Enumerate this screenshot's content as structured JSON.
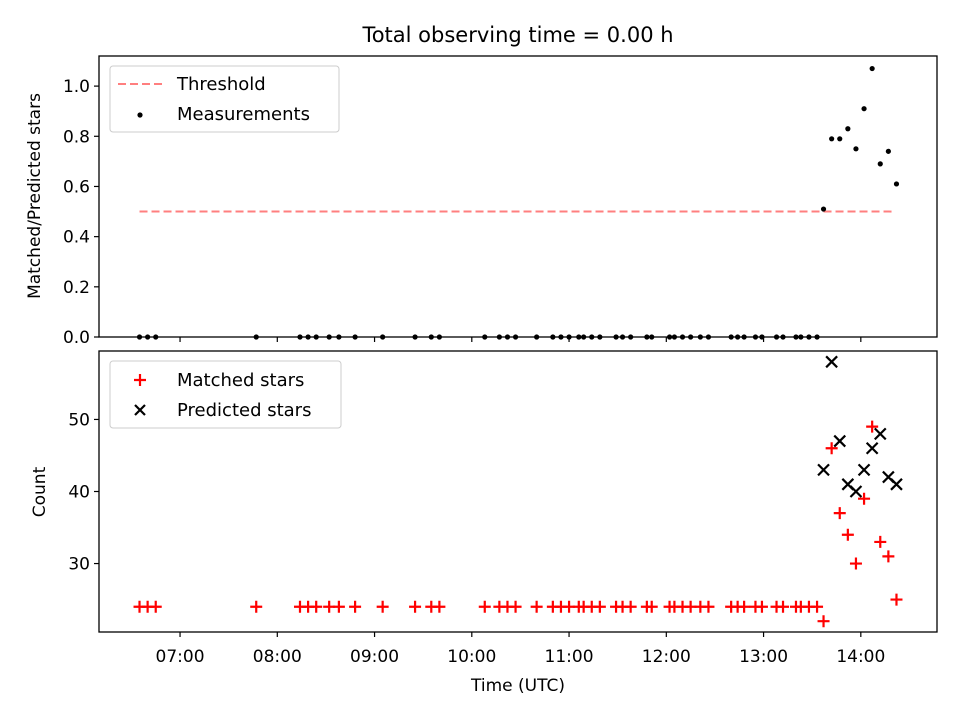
{
  "chart_data": [
    {
      "type": "scatter",
      "title": "Total observing time = 0.00 h",
      "xlabel": "",
      "ylabel": "Matched/Predicted stars",
      "ylim": [
        0,
        1.12
      ],
      "yticks": [
        "0.0",
        "0.2",
        "0.4",
        "0.6",
        "0.8",
        "1.0"
      ],
      "legend_position": "top-left",
      "threshold": {
        "name": "Threshold",
        "value": 0.5,
        "x_start": "06:35",
        "x_end": "14:20",
        "color": "#ff7f7f"
      },
      "series": [
        {
          "name": "Measurements",
          "color": "#000000",
          "marker": "dot",
          "points": [
            {
              "x": "06:35",
              "y": 0.0
            },
            {
              "x": "06:40",
              "y": 0.0
            },
            {
              "x": "06:45",
              "y": 0.0
            },
            {
              "x": "07:47",
              "y": 0.0
            },
            {
              "x": "08:14",
              "y": 0.0
            },
            {
              "x": "08:19",
              "y": 0.0
            },
            {
              "x": "08:24",
              "y": 0.0
            },
            {
              "x": "08:32",
              "y": 0.0
            },
            {
              "x": "08:38",
              "y": 0.0
            },
            {
              "x": "08:48",
              "y": 0.0
            },
            {
              "x": "09:05",
              "y": 0.0
            },
            {
              "x": "09:25",
              "y": 0.0
            },
            {
              "x": "09:35",
              "y": 0.0
            },
            {
              "x": "09:40",
              "y": 0.0
            },
            {
              "x": "10:08",
              "y": 0.0
            },
            {
              "x": "10:17",
              "y": 0.0
            },
            {
              "x": "10:22",
              "y": 0.0
            },
            {
              "x": "10:27",
              "y": 0.0
            },
            {
              "x": "10:40",
              "y": 0.0
            },
            {
              "x": "10:50",
              "y": 0.0
            },
            {
              "x": "10:55",
              "y": 0.0
            },
            {
              "x": "11:00",
              "y": 0.0
            },
            {
              "x": "11:06",
              "y": 0.0
            },
            {
              "x": "11:09",
              "y": 0.0
            },
            {
              "x": "11:14",
              "y": 0.0
            },
            {
              "x": "11:19",
              "y": 0.0
            },
            {
              "x": "11:29",
              "y": 0.0
            },
            {
              "x": "11:33",
              "y": 0.0
            },
            {
              "x": "11:38",
              "y": 0.0
            },
            {
              "x": "11:48",
              "y": 0.0
            },
            {
              "x": "11:51",
              "y": 0.0
            },
            {
              "x": "12:02",
              "y": 0.0
            },
            {
              "x": "12:05",
              "y": 0.0
            },
            {
              "x": "12:10",
              "y": 0.0
            },
            {
              "x": "12:15",
              "y": 0.0
            },
            {
              "x": "12:21",
              "y": 0.0
            },
            {
              "x": "12:26",
              "y": 0.0
            },
            {
              "x": "12:40",
              "y": 0.0
            },
            {
              "x": "12:44",
              "y": 0.0
            },
            {
              "x": "12:48",
              "y": 0.0
            },
            {
              "x": "12:55",
              "y": 0.0
            },
            {
              "x": "12:59",
              "y": 0.0
            },
            {
              "x": "13:08",
              "y": 0.0
            },
            {
              "x": "13:12",
              "y": 0.0
            },
            {
              "x": "13:20",
              "y": 0.0
            },
            {
              "x": "13:23",
              "y": 0.0
            },
            {
              "x": "13:28",
              "y": 0.0
            },
            {
              "x": "13:33",
              "y": 0.0
            },
            {
              "x": "13:37",
              "y": 0.51
            },
            {
              "x": "13:42",
              "y": 0.79
            },
            {
              "x": "13:47",
              "y": 0.79
            },
            {
              "x": "13:52",
              "y": 0.83
            },
            {
              "x": "13:57",
              "y": 0.75
            },
            {
              "x": "14:02",
              "y": 0.91
            },
            {
              "x": "14:07",
              "y": 1.07
            },
            {
              "x": "14:12",
              "y": 0.69
            },
            {
              "x": "14:17",
              "y": 0.74
            },
            {
              "x": "14:22",
              "y": 0.61
            }
          ]
        }
      ]
    },
    {
      "type": "scatter",
      "title": "",
      "xlabel": "Time (UTC)",
      "ylabel": "Count",
      "ylim": [
        20.5,
        59.5
      ],
      "yticks": [
        "30",
        "40",
        "50"
      ],
      "xticks": [
        "07:00",
        "08:00",
        "09:00",
        "10:00",
        "11:00",
        "12:00",
        "13:00",
        "14:00"
      ],
      "xlim": [
        "06:10",
        "14:47"
      ],
      "legend_position": "top-left",
      "series": [
        {
          "name": "Matched stars",
          "color": "#ff0000",
          "marker": "plus",
          "points": [
            {
              "x": "06:35",
              "y": 24
            },
            {
              "x": "06:40",
              "y": 24
            },
            {
              "x": "06:45",
              "y": 24
            },
            {
              "x": "07:47",
              "y": 24
            },
            {
              "x": "08:14",
              "y": 24
            },
            {
              "x": "08:19",
              "y": 24
            },
            {
              "x": "08:24",
              "y": 24
            },
            {
              "x": "08:32",
              "y": 24
            },
            {
              "x": "08:38",
              "y": 24
            },
            {
              "x": "08:48",
              "y": 24
            },
            {
              "x": "09:05",
              "y": 24
            },
            {
              "x": "09:25",
              "y": 24
            },
            {
              "x": "09:35",
              "y": 24
            },
            {
              "x": "09:40",
              "y": 24
            },
            {
              "x": "10:08",
              "y": 24
            },
            {
              "x": "10:17",
              "y": 24
            },
            {
              "x": "10:22",
              "y": 24
            },
            {
              "x": "10:27",
              "y": 24
            },
            {
              "x": "10:40",
              "y": 24
            },
            {
              "x": "10:50",
              "y": 24
            },
            {
              "x": "10:55",
              "y": 24
            },
            {
              "x": "11:00",
              "y": 24
            },
            {
              "x": "11:06",
              "y": 24
            },
            {
              "x": "11:09",
              "y": 24
            },
            {
              "x": "11:14",
              "y": 24
            },
            {
              "x": "11:19",
              "y": 24
            },
            {
              "x": "11:29",
              "y": 24
            },
            {
              "x": "11:33",
              "y": 24
            },
            {
              "x": "11:38",
              "y": 24
            },
            {
              "x": "11:48",
              "y": 24
            },
            {
              "x": "11:51",
              "y": 24
            },
            {
              "x": "12:02",
              "y": 24
            },
            {
              "x": "12:05",
              "y": 24
            },
            {
              "x": "12:10",
              "y": 24
            },
            {
              "x": "12:15",
              "y": 24
            },
            {
              "x": "12:21",
              "y": 24
            },
            {
              "x": "12:26",
              "y": 24
            },
            {
              "x": "12:40",
              "y": 24
            },
            {
              "x": "12:44",
              "y": 24
            },
            {
              "x": "12:48",
              "y": 24
            },
            {
              "x": "12:55",
              "y": 24
            },
            {
              "x": "12:59",
              "y": 24
            },
            {
              "x": "13:08",
              "y": 24
            },
            {
              "x": "13:12",
              "y": 24
            },
            {
              "x": "13:20",
              "y": 24
            },
            {
              "x": "13:23",
              "y": 24
            },
            {
              "x": "13:28",
              "y": 24
            },
            {
              "x": "13:33",
              "y": 24
            },
            {
              "x": "13:37",
              "y": 22
            },
            {
              "x": "13:42",
              "y": 46
            },
            {
              "x": "13:47",
              "y": 37
            },
            {
              "x": "13:52",
              "y": 34
            },
            {
              "x": "13:57",
              "y": 30
            },
            {
              "x": "14:02",
              "y": 39
            },
            {
              "x": "14:07",
              "y": 49
            },
            {
              "x": "14:12",
              "y": 33
            },
            {
              "x": "14:17",
              "y": 31
            },
            {
              "x": "14:22",
              "y": 25
            }
          ]
        },
        {
          "name": "Predicted stars",
          "color": "#000000",
          "marker": "x",
          "points": [
            {
              "x": "13:37",
              "y": 43
            },
            {
              "x": "13:42",
              "y": 58
            },
            {
              "x": "13:47",
              "y": 47
            },
            {
              "x": "13:52",
              "y": 41
            },
            {
              "x": "13:57",
              "y": 40
            },
            {
              "x": "14:02",
              "y": 43
            },
            {
              "x": "14:07",
              "y": 46
            },
            {
              "x": "14:12",
              "y": 48
            },
            {
              "x": "14:17",
              "y": 42
            },
            {
              "x": "14:22",
              "y": 41
            }
          ]
        }
      ]
    }
  ]
}
